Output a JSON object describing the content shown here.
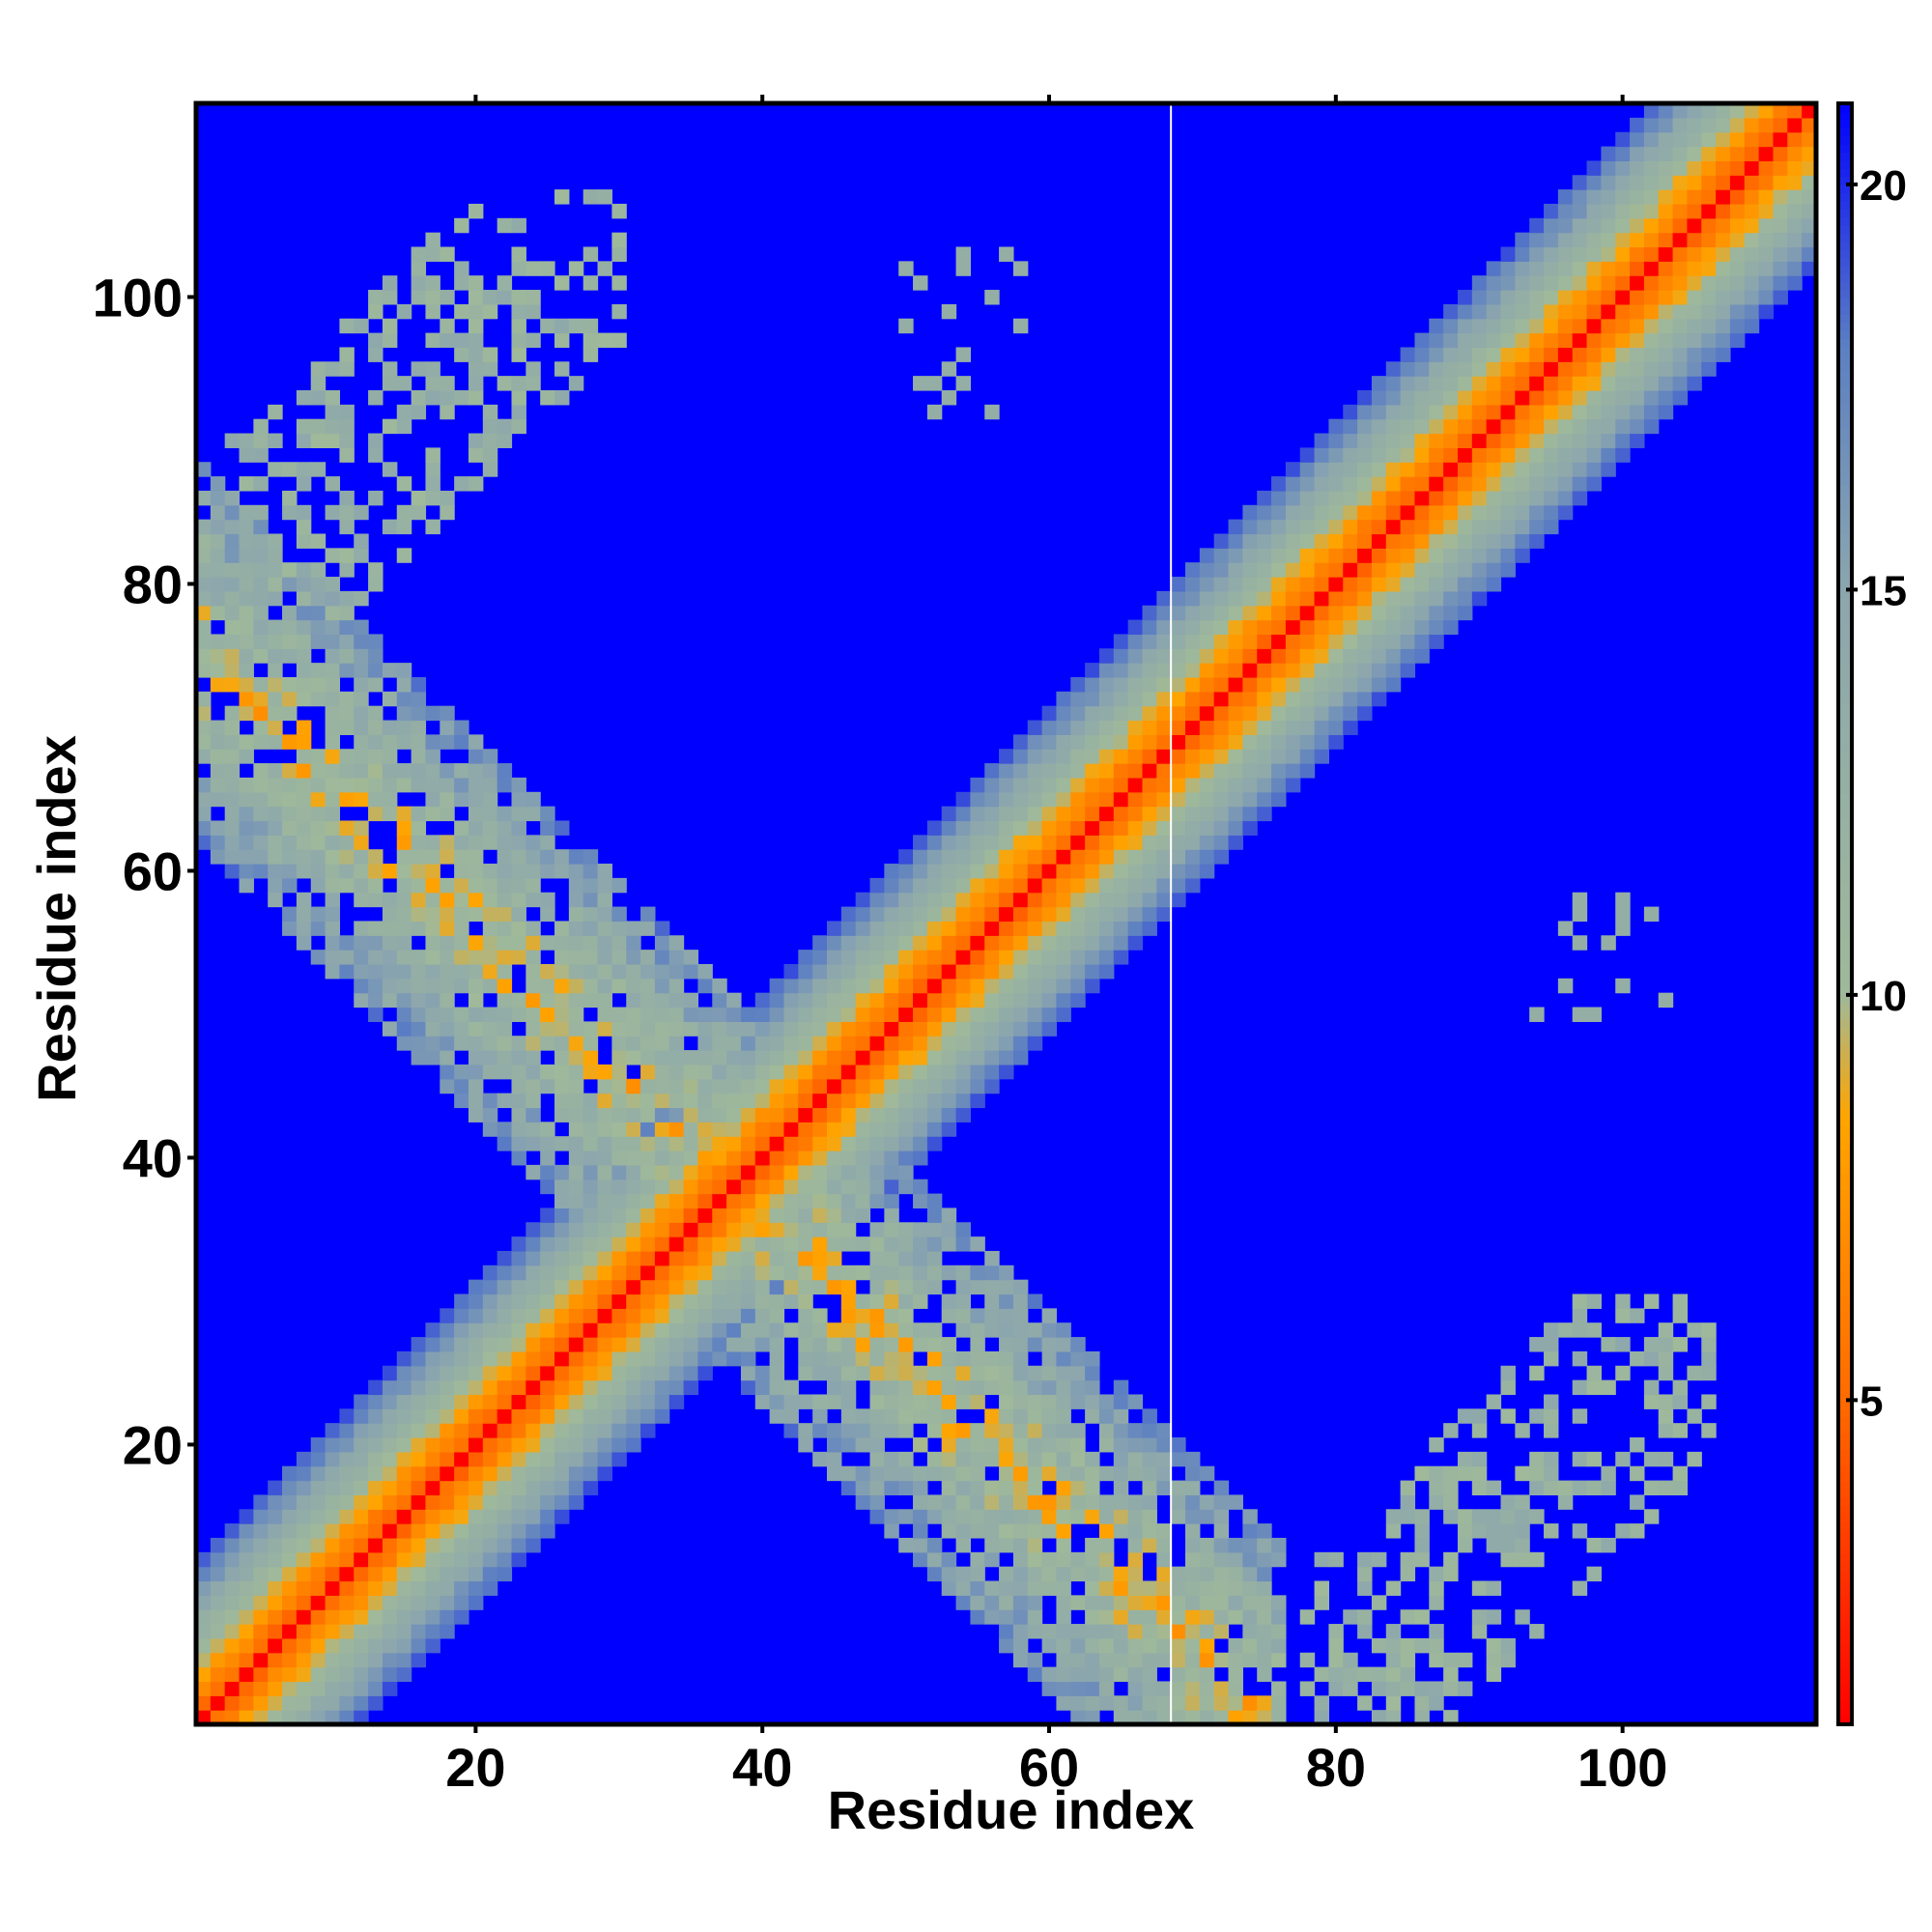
{
  "chart_data": {
    "type": "heatmap",
    "title": "",
    "xlabel": "Residue index",
    "ylabel": "Residue index",
    "xlim": [
      0.5,
      113.5
    ],
    "ylim": [
      0.5,
      113.5
    ],
    "n_residues": 113,
    "xticks": [
      20,
      40,
      60,
      80,
      100
    ],
    "yticks": [
      20,
      40,
      60,
      80,
      100
    ],
    "colorbar": {
      "range": [
        1,
        21
      ],
      "ticks": [
        5,
        10,
        15,
        20
      ],
      "stops": [
        {
          "value": 1,
          "color": "#ff0000"
        },
        {
          "value": 5,
          "color": "#ff6a00"
        },
        {
          "value": 8.5,
          "color": "#ffa500"
        },
        {
          "value": 10,
          "color": "#9fb99a"
        },
        {
          "value": 15,
          "color": "#8ca6ae"
        },
        {
          "value": 18,
          "color": "#5c7fc2"
        },
        {
          "value": 21,
          "color": "#0000ff"
        }
      ]
    },
    "background_color": "#0000ff",
    "features": {
      "main_diagonal": {
        "center_distance": 3.8,
        "band_halfwidth_residues": 11
      },
      "antiparallel_band": {
        "i_plus_j": 76,
        "i_range": [
          1,
          76
        ],
        "typical_distance": 9
      },
      "corner_contacts_top_left": {
        "i_range": [
          1,
          30
        ],
        "j_range": [
          78,
          107
        ],
        "typical_distance": 12
      },
      "corner_contacts_bottom_right": {
        "i_range": [
          78,
          106
        ],
        "j_range": [
          1,
          30
        ],
        "typical_distance": 12
      },
      "sparse_patch_upper": {
        "i_range": [
          50,
          58
        ],
        "j_range": [
          92,
          103
        ],
        "typical_distance": 13
      },
      "sparse_patch_right": {
        "i_range": [
          92,
          103
        ],
        "j_range": [
          50,
          58
        ],
        "typical_distance": 13
      }
    },
    "gap_column_residue": 68.5
  }
}
